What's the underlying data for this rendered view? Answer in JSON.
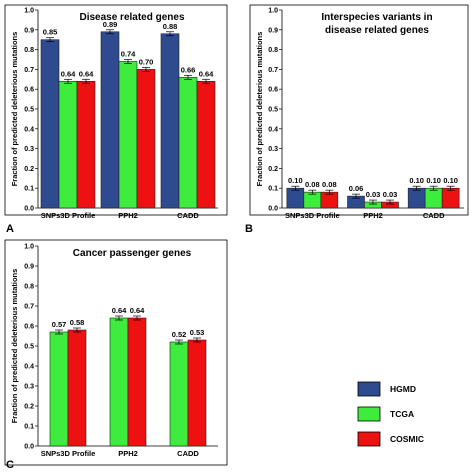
{
  "colors": {
    "HGMD": "#2e4b8f",
    "TCGA": "#3dec3d",
    "COSMIC": "#ee1111"
  },
  "legend": {
    "items": [
      "HGMD",
      "TCGA",
      "COSMIC"
    ]
  },
  "chart_data": [
    {
      "type": "bar",
      "panel": "A",
      "title_lines": [
        "Disease related genes"
      ],
      "ylabel": "Fraction of predicted deleterious mutations",
      "ylim": [
        0,
        1
      ],
      "yticks": [
        "0.0",
        "0.1",
        "0.2",
        "0.3",
        "0.4",
        "0.5",
        "0.6",
        "0.7",
        "0.8",
        "0.9",
        "1.0"
      ],
      "categories": [
        "SNPs3D Profile",
        "PPH2",
        "CADD"
      ],
      "series": [
        {
          "name": "HGMD",
          "values": [
            0.85,
            0.89,
            0.88
          ],
          "labels": [
            "0.85",
            "0.89",
            "0.88"
          ]
        },
        {
          "name": "TCGA",
          "values": [
            0.64,
            0.74,
            0.66
          ],
          "labels": [
            "0.64",
            "0.74",
            "0.66"
          ]
        },
        {
          "name": "COSMIC",
          "values": [
            0.64,
            0.7,
            0.64
          ],
          "labels": [
            "0.64",
            "0.70",
            "0.64"
          ]
        }
      ]
    },
    {
      "type": "bar",
      "panel": "B",
      "title_lines": [
        "Interspecies variants in",
        "disease related genes"
      ],
      "ylabel": "Fraction of predicted deleterious mutations",
      "ylim": [
        0,
        1
      ],
      "yticks": [
        "0.0",
        "0.1",
        "0.2",
        "0.3",
        "0.4",
        "0.5",
        "0.6",
        "0.7",
        "0.8",
        "0.9",
        "1.0"
      ],
      "categories": [
        "SNPs3D Profile",
        "PPH2",
        "CADD"
      ],
      "series": [
        {
          "name": "HGMD",
          "values": [
            0.1,
            0.06,
            0.1
          ],
          "labels": [
            "0.10",
            "0.06",
            "0.10"
          ]
        },
        {
          "name": "TCGA",
          "values": [
            0.08,
            0.03,
            0.1
          ],
          "labels": [
            "0.08",
            "0.03",
            "0.10"
          ]
        },
        {
          "name": "COSMIC",
          "values": [
            0.08,
            0.03,
            0.1
          ],
          "labels": [
            "0.08",
            "0.03",
            "0.10"
          ]
        }
      ]
    },
    {
      "type": "bar",
      "panel": "C",
      "title_lines": [
        "Cancer passenger genes"
      ],
      "ylabel": "Fraction of predicted deleterious mutations",
      "ylim": [
        0,
        1
      ],
      "yticks": [
        "0.0",
        "0.1",
        "0.2",
        "0.3",
        "0.4",
        "0.5",
        "0.6",
        "0.7",
        "0.8",
        "0.9",
        "1.0"
      ],
      "categories": [
        "SNPs3D Profile",
        "PPH2",
        "CADD"
      ],
      "series": [
        {
          "name": "TCGA",
          "values": [
            0.57,
            0.64,
            0.52
          ],
          "labels": [
            "0.57",
            "0.64",
            "0.52"
          ]
        },
        {
          "name": "COSMIC",
          "values": [
            0.58,
            0.64,
            0.53
          ],
          "labels": [
            "0.58",
            "0.64",
            "0.53"
          ]
        }
      ]
    }
  ]
}
